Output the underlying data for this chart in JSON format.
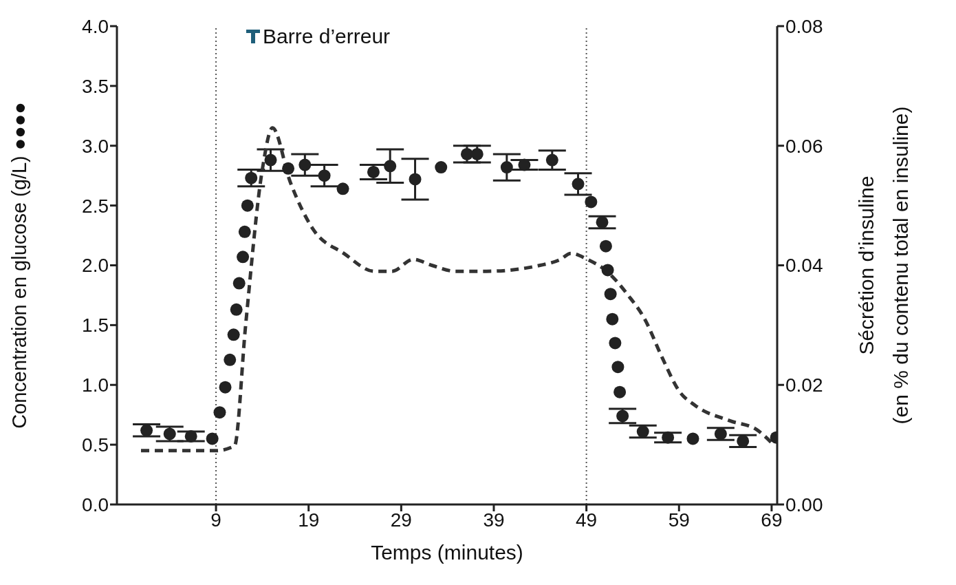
{
  "chart_data": {
    "type": "scatter",
    "xlabel": "Temps (minutes)",
    "ylabel": "Concentration en glucose (g/L) ●●●●",
    "y2label": "Sécrétion d’insuline\n(en % du contenu total en insuline)",
    "annotations": [
      "Barre d’erreur"
    ],
    "xlim": [
      -1.7,
      69.6
    ],
    "xticks": [
      9,
      19,
      29,
      39,
      49,
      59,
      69
    ],
    "ylim": [
      0,
      4
    ],
    "yticks": [
      {
        "value": 0,
        "label": "0.0"
      },
      {
        "value": 0.5,
        "label": "0.5"
      },
      {
        "value": 1,
        "label": "1.0"
      },
      {
        "value": 1.5,
        "label": "1.5"
      },
      {
        "value": 2,
        "label": "2.0"
      },
      {
        "value": 2.5,
        "label": "2.5"
      },
      {
        "value": 3,
        "label": "3.0"
      },
      {
        "value": 3.5,
        "label": "3.5"
      },
      {
        "value": 4,
        "label": "4.0"
      }
    ],
    "y2lim": [
      0,
      0.08
    ],
    "y2ticks": [
      {
        "value": 0,
        "label": "0.00"
      },
      {
        "value": 0.02,
        "label": "0.02"
      },
      {
        "value": 0.04,
        "label": "0.04"
      },
      {
        "value": 0.06,
        "label": "0.06"
      },
      {
        "value": 0.08,
        "label": "0.08"
      }
    ],
    "grid": false,
    "legend": false,
    "ref_lines": [
      {
        "axis": "x",
        "value": 9,
        "color": "#555555",
        "line_style": "dotted"
      },
      {
        "axis": "x",
        "value": 49,
        "color": "#555555",
        "line_style": "dotted"
      }
    ],
    "series": [
      {
        "color": "#222222",
        "marker": "circle",
        "x": [
          1.5,
          4,
          6.3,
          8.6,
          9.4,
          10,
          10.5,
          10.9,
          11.2,
          11.5,
          11.9,
          12.1,
          12.4,
          12.8,
          14.9,
          16.8,
          18.6,
          20.7,
          22.7,
          26,
          27.8,
          30.5,
          33.3,
          36.1,
          37.2,
          40.4,
          42.3,
          45.3,
          48.1,
          49.5,
          50.7,
          51.1,
          51.3,
          51.6,
          51.8,
          52.1,
          52.4,
          52.6,
          52.9,
          55.1,
          57.8,
          60.5,
          63.5,
          65.9,
          69.5
        ],
        "values": [
          0.62,
          0.59,
          0.57,
          0.55,
          0.77,
          0.98,
          1.21,
          1.42,
          1.63,
          1.85,
          2.07,
          2.28,
          2.5,
          2.73,
          2.88,
          2.81,
          2.84,
          2.75,
          2.64,
          2.78,
          2.83,
          2.72,
          2.82,
          2.93,
          2.93,
          2.82,
          2.84,
          2.88,
          2.68,
          2.53,
          2.36,
          2.16,
          1.96,
          1.76,
          1.55,
          1.35,
          1.15,
          0.94,
          0.74,
          0.61,
          0.56,
          0.55,
          0.59,
          0.53,
          0.56
        ],
        "errors": [
          0.05,
          0.06,
          0.04,
          null,
          null,
          null,
          null,
          null,
          null,
          null,
          null,
          null,
          null,
          0.07,
          0.09,
          null,
          0.09,
          0.09,
          null,
          0.06,
          0.14,
          0.17,
          null,
          0.07,
          0.07,
          0.11,
          0.04,
          0.08,
          0.09,
          null,
          0.05,
          null,
          null,
          null,
          null,
          null,
          null,
          null,
          0.06,
          0.05,
          0.04,
          null,
          0.05,
          0.05,
          null
        ]
      },
      {
        "type": "line",
        "axis": "y2",
        "color": "#333333",
        "line_style": "dashed",
        "marker": "none",
        "x": [
          0.9,
          9,
          11,
          12.2,
          14,
          15.1,
          17,
          19.5,
          22.8,
          26.1,
          28,
          30.3,
          32.3,
          34.9,
          38.2,
          44,
          46.2,
          47.3,
          49.1,
          51.2,
          53.5,
          55.3,
          57.2,
          59,
          60.8,
          64.5,
          67.4,
          69.2
        ],
        "values": [
          0.009,
          0.009,
          0.0098,
          0.03,
          0.056,
          0.063,
          0.054,
          0.046,
          0.042,
          0.039,
          0.039,
          0.041,
          0.04,
          0.039,
          0.039,
          0.04,
          0.041,
          0.042,
          0.041,
          0.039,
          0.035,
          0.031,
          0.0245,
          0.019,
          0.0165,
          0.014,
          0.0125,
          0.01
        ]
      }
    ]
  }
}
